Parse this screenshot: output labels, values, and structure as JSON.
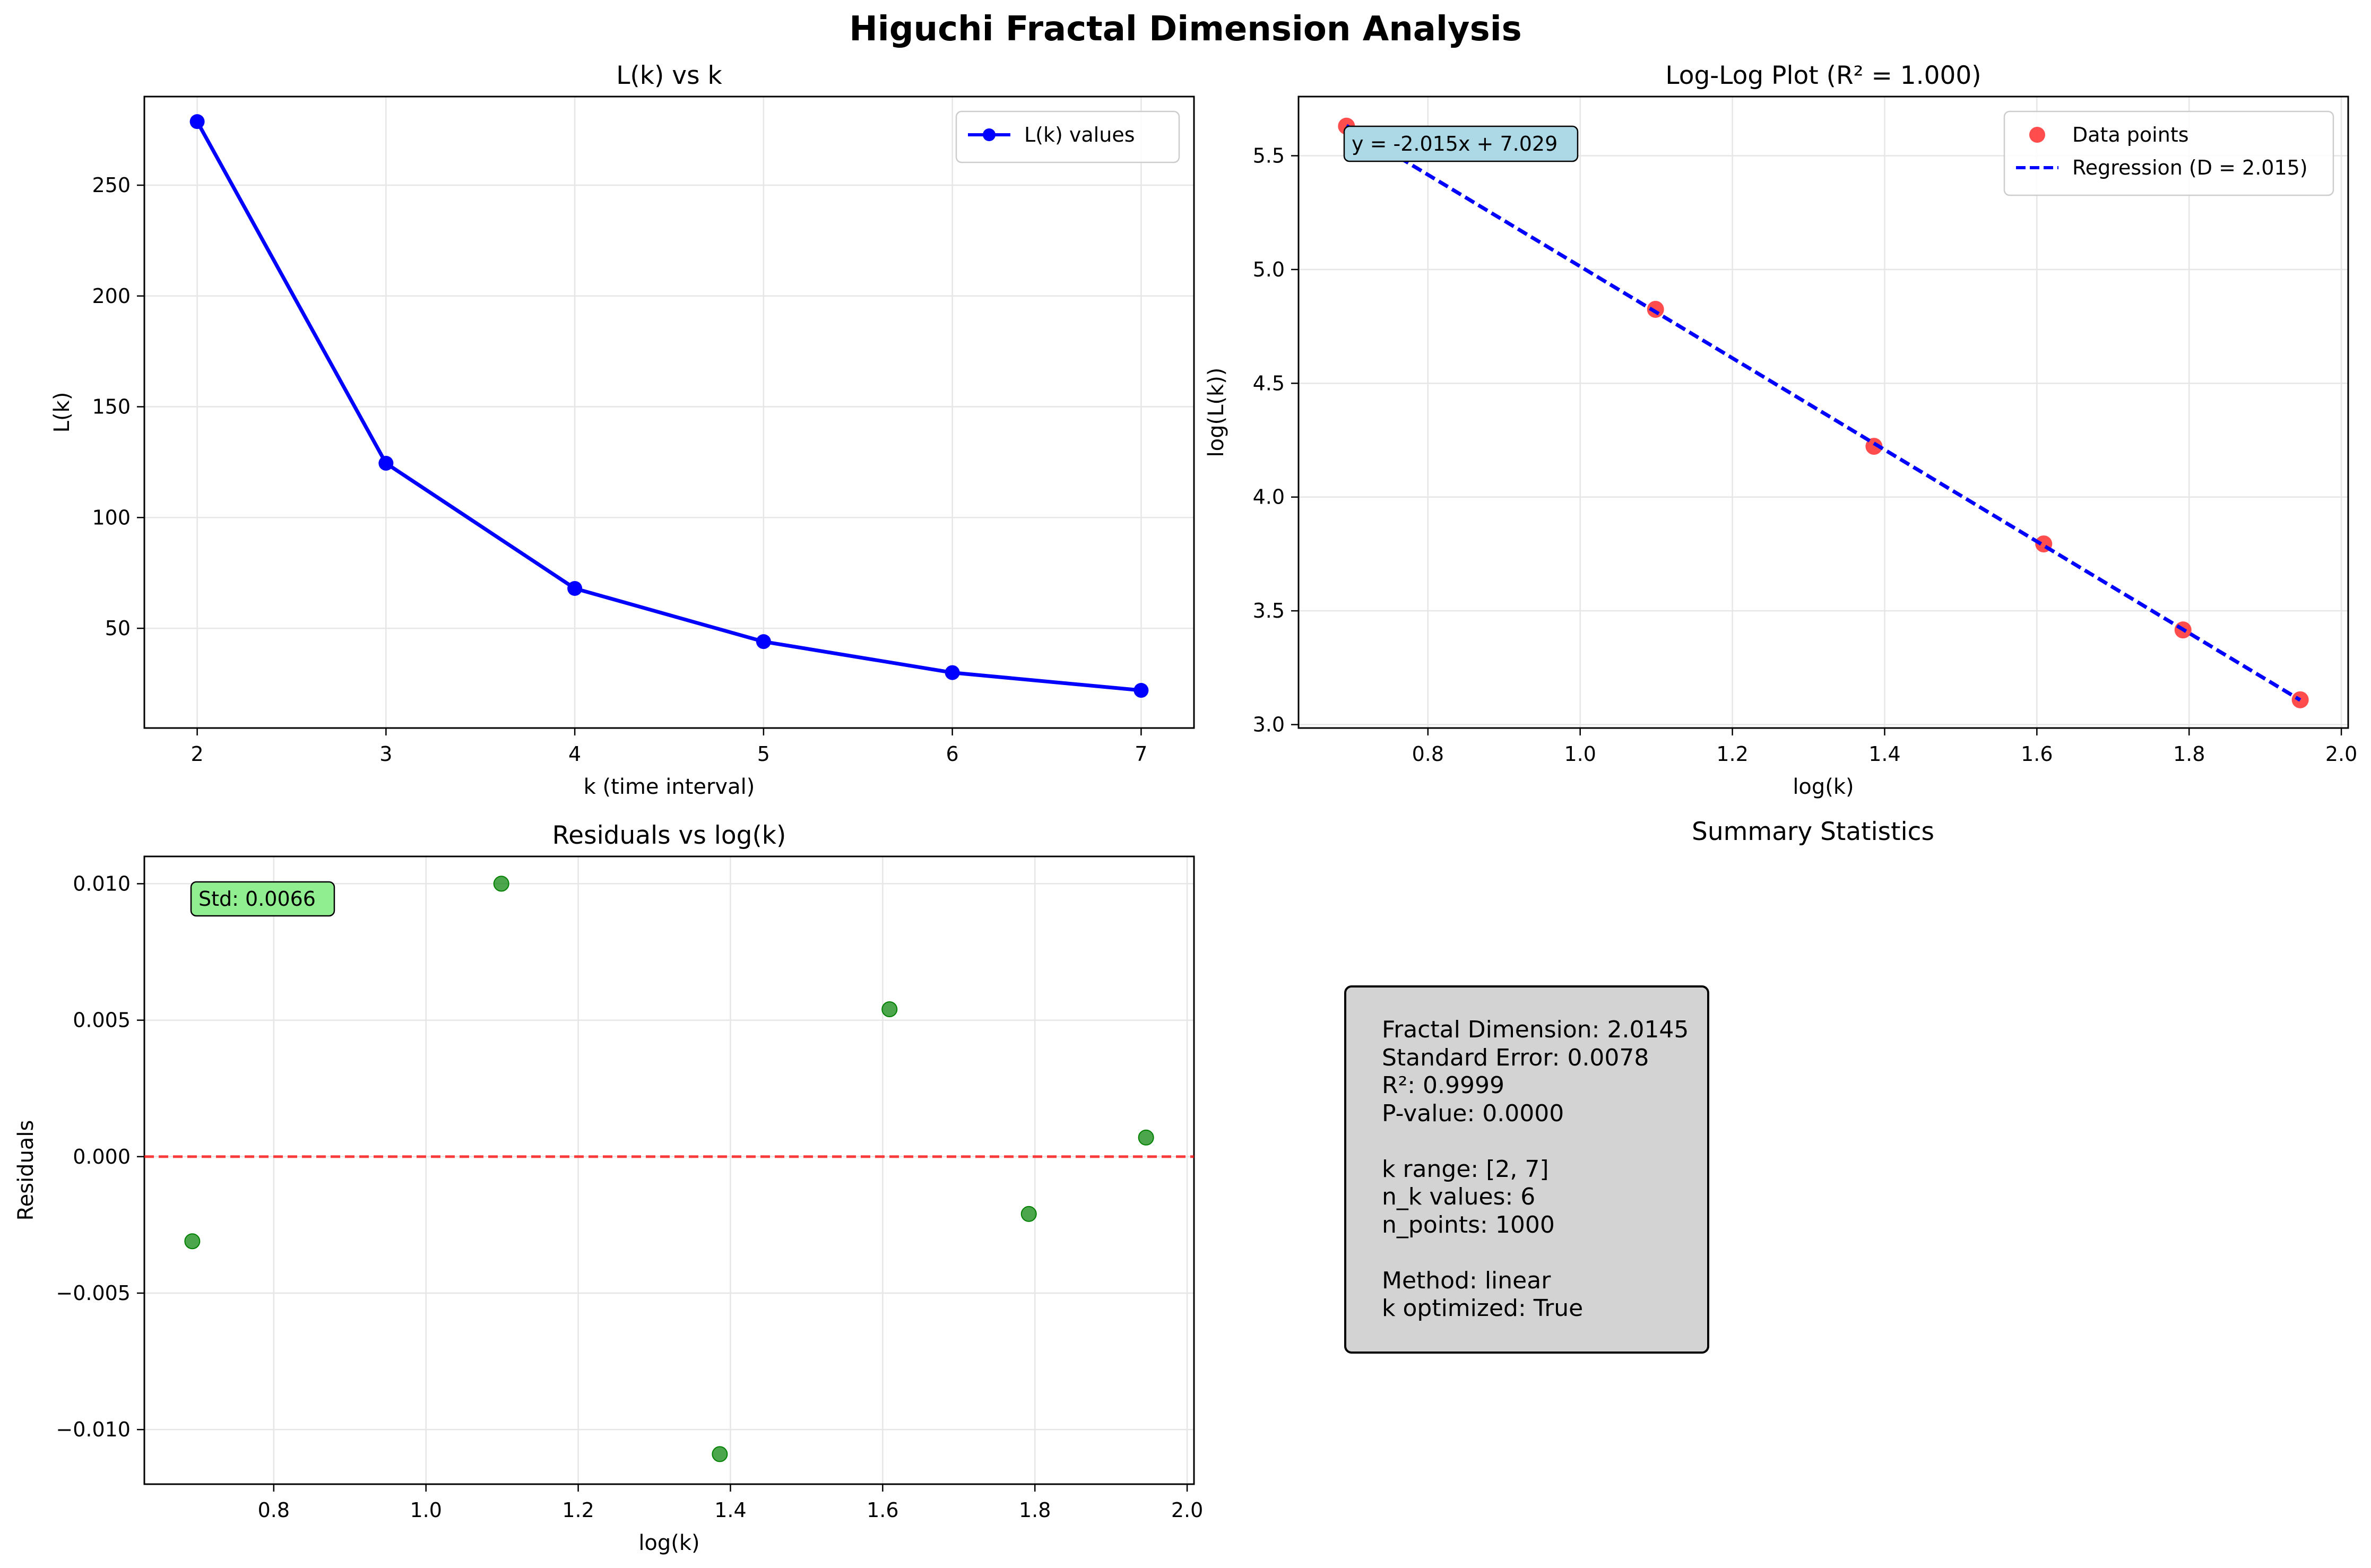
{
  "figure_title": "Higuchi Fractal Dimension Analysis",
  "colors": {
    "line_blue": "#0000ff",
    "scatter_red": "#ff0000",
    "scatter_green": "#008000",
    "zero_line_red": "#ff0000",
    "eq_box": "#add8e6",
    "std_box": "#90ee90",
    "summary_box": "#d3d3d3",
    "grid": "#e6e6e6"
  },
  "chart_data": [
    {
      "type": "line",
      "title": "L(k) vs k",
      "xlabel": "k (time interval)",
      "ylabel": "L(k)",
      "x": [
        2,
        3,
        4,
        5,
        6,
        7
      ],
      "series": [
        {
          "name": "L(k) values",
          "values": [
            278.7,
            124.5,
            68.0,
            44.0,
            30.0,
            22.0
          ]
        }
      ],
      "xlim": [
        1.72,
        7.28
      ],
      "ylim": [
        5,
        290
      ],
      "xticks": [
        2,
        3,
        4,
        5,
        6,
        7
      ],
      "yticks": [
        50,
        100,
        150,
        200,
        250
      ],
      "xtick_labels": [
        "2",
        "3",
        "4",
        "5",
        "6",
        "7"
      ],
      "ytick_labels": [
        "50",
        "100",
        "150",
        "200",
        "250"
      ],
      "grid": true,
      "legend": "upper right"
    },
    {
      "type": "scatter",
      "title": "Log-Log Plot (R² = 1.000)",
      "xlabel": "log(k)",
      "ylabel": "log(L(k))",
      "x": [
        0.693,
        1.099,
        1.386,
        1.609,
        1.792,
        1.946
      ],
      "series": [
        {
          "name": "Data points",
          "values": [
            5.63,
            4.825,
            4.223,
            3.794,
            3.416,
            3.109
          ]
        },
        {
          "name": "Regression (D = 2.015)",
          "kind": "line",
          "x": [
            0.693,
            1.946
          ],
          "values": [
            5.632,
            3.108
          ]
        }
      ],
      "annotation": "y = -2.015x + 7.029",
      "xlim": [
        0.63,
        2.009
      ],
      "ylim": [
        2.985,
        5.76
      ],
      "xticks": [
        0.8,
        1.0,
        1.2,
        1.4,
        1.6,
        1.8,
        2.0
      ],
      "yticks": [
        3.0,
        3.5,
        4.0,
        4.5,
        5.0,
        5.5
      ],
      "xtick_labels": [
        "0.8",
        "1.0",
        "1.2",
        "1.4",
        "1.6",
        "1.8",
        "2.0"
      ],
      "ytick_labels": [
        "3.0",
        "3.5",
        "4.0",
        "4.5",
        "5.0",
        "5.5"
      ],
      "grid": true,
      "legend": "upper right"
    },
    {
      "type": "scatter",
      "title": "Residuals vs log(k)",
      "xlabel": "log(k)",
      "ylabel": "Residuals",
      "x": [
        0.693,
        1.099,
        1.386,
        1.609,
        1.792,
        1.946
      ],
      "series": [
        {
          "name": "Residuals",
          "values": [
            -0.0031,
            0.01,
            -0.0109,
            0.0054,
            -0.0021,
            0.0007
          ]
        }
      ],
      "reference_line": 0,
      "annotation": "Std: 0.0066",
      "xlim": [
        0.63,
        2.009
      ],
      "ylim": [
        -0.012,
        0.011
      ],
      "xticks": [
        0.8,
        1.0,
        1.2,
        1.4,
        1.6,
        1.8,
        2.0
      ],
      "yticks": [
        -0.01,
        -0.005,
        0.0,
        0.005,
        0.01
      ],
      "xtick_labels": [
        "0.8",
        "1.0",
        "1.2",
        "1.4",
        "1.6",
        "1.8",
        "2.0"
      ],
      "ytick_labels": [
        "−0.010",
        "−0.005",
        "0.000",
        "0.005",
        "0.010"
      ],
      "grid": true
    }
  ],
  "summary": {
    "title": "Summary Statistics",
    "lines": [
      "Fractal Dimension: 2.0145",
      "Standard Error: 0.0078",
      "R²: 0.9999",
      "P-value: 0.0000",
      "",
      "k range: [2, 7]",
      "n_k values: 6",
      "n_points: 1000",
      "",
      "Method: linear",
      "k optimized: True"
    ]
  }
}
